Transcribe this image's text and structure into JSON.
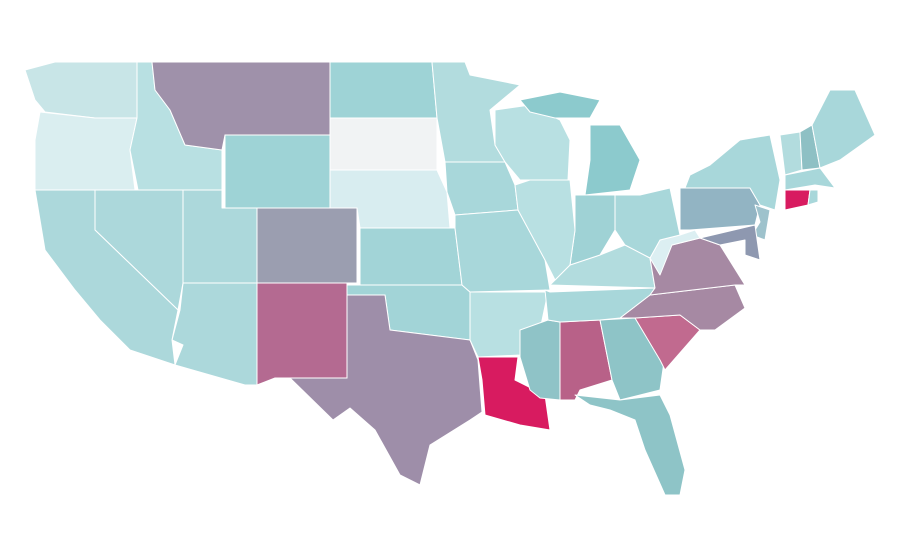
{
  "map": {
    "regions": [
      {
        "color": "#c8e5e7"
      },
      {
        "color": "#daeef0"
      },
      {
        "color": "#b8e0e2"
      },
      {
        "color": "#9f91aa"
      },
      {
        "color": "#9ed3d6"
      },
      {
        "color": "#9ed3d6"
      },
      {
        "color": "#f1f3f4"
      },
      {
        "color": "#d8edf0"
      },
      {
        "color": "#9b9eb0"
      },
      {
        "color": "#a2d4d7"
      },
      {
        "color": "#a2d4d7"
      },
      {
        "color": "#9e8ea9"
      },
      {
        "color": "#b46a91"
      },
      {
        "color": "#acd8db"
      },
      {
        "color": "#acd8db"
      },
      {
        "color": "#acd8db"
      },
      {
        "color": "#acd8db"
      },
      {
        "color": "#b2dcde"
      },
      {
        "color": "#a8d7da"
      },
      {
        "color": "#a8d7da"
      },
      {
        "color": "#b8e0e2"
      },
      {
        "color": "#d81b60"
      },
      {
        "color": "#8fc3c7"
      },
      {
        "color": "#b86188"
      },
      {
        "color": "#8ec4c7"
      },
      {
        "color": "#8ec4c7"
      },
      {
        "color": "#c16a8f"
      },
      {
        "color": "#a689a3"
      },
      {
        "color": "#a8d7da"
      },
      {
        "color": "#b2dcde"
      },
      {
        "color": "#a689a3"
      },
      {
        "color": "#dceff2"
      },
      {
        "color": "#a8d7da"
      },
      {
        "color": "#9fd2d5"
      },
      {
        "color": "#b8e0e2"
      },
      {
        "color": "#b8e0e2"
      },
      {
        "color": "#8ccacd"
      },
      {
        "color": "#8ccacd"
      },
      {
        "color": "#92b4c3"
      },
      {
        "color": "#a8d7da"
      },
      {
        "color": "#9ec2cc"
      },
      {
        "color": "#8e98b0"
      },
      {
        "color": "#b2dcde"
      },
      {
        "color": "#8ec0c4"
      },
      {
        "color": "#a8d7da"
      },
      {
        "color": "#a8d7da"
      },
      {
        "color": "#d81b60"
      },
      {
        "color": "#a8d7da"
      }
    ]
  }
}
